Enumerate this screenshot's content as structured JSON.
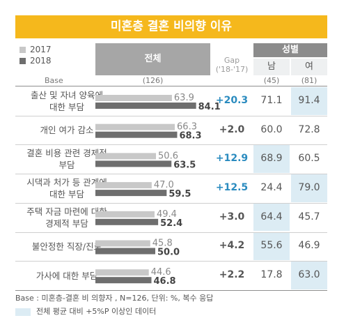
{
  "title": "미혼층 결혼 비의향 이유",
  "legend": {
    "y2017": "2017",
    "y2018": "2018"
  },
  "header": {
    "total": "전체",
    "gap_line1": "Gap",
    "gap_line2": "('18-'17)",
    "gender": "성별",
    "male": "남",
    "female": "여"
  },
  "base": {
    "label": "Base",
    "total": "(126)",
    "male": "(45)",
    "female": "(81)"
  },
  "colors": {
    "title_bg": "#f5b81c",
    "bar_2017": "#c8c8c8",
    "bar_2018": "#6e6e6e",
    "gap_highlight": "#2a8bbf",
    "cell_highlight": "#dcecf4"
  },
  "chart_data": {
    "type": "bar",
    "title": "미혼층 결혼 비의향 이유",
    "series": [
      {
        "name": "2017",
        "values": [
          63.9,
          66.3,
          50.6,
          47.0,
          49.4,
          45.8,
          44.6
        ]
      },
      {
        "name": "2018",
        "values": [
          84.1,
          68.3,
          63.5,
          59.5,
          52.4,
          50.0,
          46.8
        ]
      }
    ],
    "rows": [
      {
        "label": "출산 및 자녀 양육에 대한 부담",
        "label_lines": [
          "출산 및 자녀 양육에",
          "대한 부담"
        ],
        "v2017": "63.9",
        "v2018": "84.1",
        "gap": "+20.3",
        "gap_highlight": true,
        "male": "71.1",
        "female": "91.4",
        "male_hl": false,
        "female_hl": true
      },
      {
        "label": "개인 여가 감소",
        "label_lines": [
          "개인 여가 감소"
        ],
        "v2017": "66.3",
        "v2018": "68.3",
        "gap": "+2.0",
        "gap_highlight": false,
        "male": "60.0",
        "female": "72.8",
        "male_hl": false,
        "female_hl": false
      },
      {
        "label": "결혼 비용 관련 경제적 부담",
        "label_lines": [
          "결혼 비용 관련 경제적",
          "부담"
        ],
        "v2017": "50.6",
        "v2018": "63.5",
        "gap": "+12.9",
        "gap_highlight": true,
        "male": "68.9",
        "female": "60.5",
        "male_hl": true,
        "female_hl": false
      },
      {
        "label": "시댁과 처가 등 관계에 대한 부담",
        "label_lines": [
          "시댁과 처가 등 관계에",
          "대한 부담"
        ],
        "v2017": "47.0",
        "v2018": "59.5",
        "gap": "+12.5",
        "gap_highlight": true,
        "male": "24.4",
        "female": "79.0",
        "male_hl": false,
        "female_hl": true
      },
      {
        "label": "주택 자금 마련에 대한 경제적 부담",
        "label_lines": [
          "주택 자금 마련에 대한",
          "경제적 부담"
        ],
        "v2017": "49.4",
        "v2018": "52.4",
        "gap": "+3.0",
        "gap_highlight": false,
        "male": "64.4",
        "female": "45.7",
        "male_hl": true,
        "female_hl": false
      },
      {
        "label": "불안정한 직장/진로",
        "label_lines": [
          "불안정한 직장/진로"
        ],
        "v2017": "45.8",
        "v2018": "50.0",
        "gap": "+4.2",
        "gap_highlight": false,
        "male": "55.6",
        "female": "46.9",
        "male_hl": true,
        "female_hl": false
      },
      {
        "label": "가사에 대한 부담",
        "label_lines": [
          "가사에 대한 부담"
        ],
        "v2017": "44.6",
        "v2018": "46.8",
        "gap": "+2.2",
        "gap_highlight": false,
        "male": "17.8",
        "female": "63.0",
        "male_hl": false,
        "female_hl": true
      }
    ],
    "xlim": [
      0,
      100
    ],
    "unit": "%"
  },
  "footer": {
    "base_note": "Base : 미혼층-결혼 비 의향자 , N=126, 단위: %, 복수 응답",
    "highlight_note": "전체 평균 대비 +5%P 이상인 데이터"
  }
}
